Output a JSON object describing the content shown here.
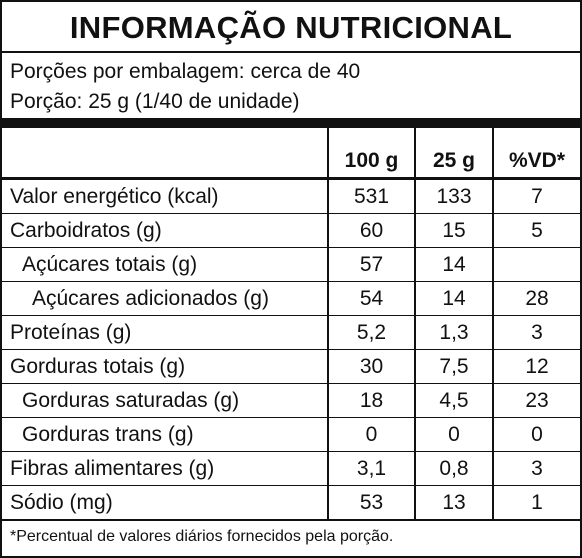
{
  "title": "INFORMAÇÃO NUTRICIONAL",
  "servings_per_package": "Porções por embalagem: cerca de 40",
  "serving_size": "Porção: 25 g (1/40 de unidade)",
  "columns": [
    "100 g",
    "25 g",
    "%VD*"
  ],
  "rows": [
    {
      "label": "Valor energético (kcal)",
      "per100": "531",
      "per_portion": "133",
      "vd": "7"
    },
    {
      "label": "Carboidratos (g)",
      "per100": "60",
      "per_portion": "15",
      "vd": "5"
    },
    {
      "label": "Açúcares totais (g)",
      "per100": "57",
      "per_portion": "14",
      "vd": ""
    },
    {
      "label": "Açúcares adicionados (g)",
      "per100": "54",
      "per_portion": "14",
      "vd": "28"
    },
    {
      "label": "Proteínas (g)",
      "per100": "5,2",
      "per_portion": "1,3",
      "vd": "3"
    },
    {
      "label": "Gorduras totais (g)",
      "per100": "30",
      "per_portion": "7,5",
      "vd": "12"
    },
    {
      "label": "Gorduras saturadas (g)",
      "per100": "18",
      "per_portion": "4,5",
      "vd": "23"
    },
    {
      "label": "Gorduras trans (g)",
      "per100": "0",
      "per_portion": "0",
      "vd": "0"
    },
    {
      "label": "Fibras alimentares (g)",
      "per100": "3,1",
      "per_portion": "0,8",
      "vd": "3"
    },
    {
      "label": "Sódio (mg)",
      "per100": "53",
      "per_portion": "13",
      "vd": "1"
    }
  ],
  "footnote": "*Percentual de valores diários fornecidos pela porção."
}
